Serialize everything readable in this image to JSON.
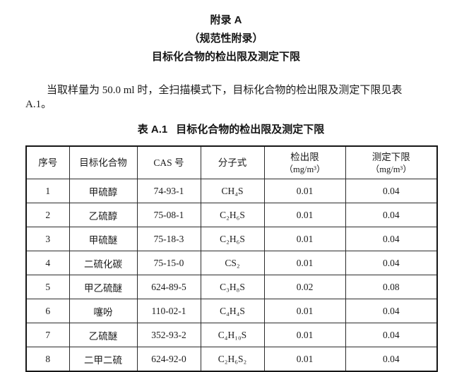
{
  "page": {
    "heading1": "附录 A",
    "heading2": "（规范性附录）",
    "heading3": "目标化合物的检出限及测定下限",
    "paragraph": "当取样量为 50.0 ml 时，全扫描模式下，目标化合物的检出限及测定下限见表 A.1。",
    "table_label": "表 A.1",
    "table_title": "目标化合物的检出限及测定下限"
  },
  "table": {
    "headers": [
      {
        "label": "序号",
        "unit": ""
      },
      {
        "label": "目标化合物",
        "unit": ""
      },
      {
        "label": "CAS 号",
        "unit": ""
      },
      {
        "label": "分子式",
        "unit": ""
      },
      {
        "label": "检出限",
        "unit": "（mg/m³）"
      },
      {
        "label": "测定下限",
        "unit": "（mg/m³）"
      }
    ],
    "rows": [
      [
        "1",
        "甲硫醇",
        "74-93-1",
        "CH₄S",
        "0.01",
        "0.04"
      ],
      [
        "2",
        "乙硫醇",
        "75-08-1",
        "C₂H₆S",
        "0.01",
        "0.04"
      ],
      [
        "3",
        "甲硫醚",
        "75-18-3",
        "C₂H₆S",
        "0.01",
        "0.04"
      ],
      [
        "4",
        "二硫化碳",
        "75-15-0",
        "CS₂",
        "0.01",
        "0.04"
      ],
      [
        "5",
        "甲乙硫醚",
        "624-89-5",
        "C₃H₈S",
        "0.02",
        "0.08"
      ],
      [
        "6",
        "噻吩",
        "110-02-1",
        "C₄H₄S",
        "0.01",
        "0.04"
      ],
      [
        "7",
        "乙硫醚",
        "352-93-2",
        "C₄H₁₀S",
        "0.01",
        "0.04"
      ],
      [
        "8",
        "二甲二硫",
        "624-92-0",
        "C₂H₆S₂",
        "0.01",
        "0.04"
      ]
    ]
  }
}
